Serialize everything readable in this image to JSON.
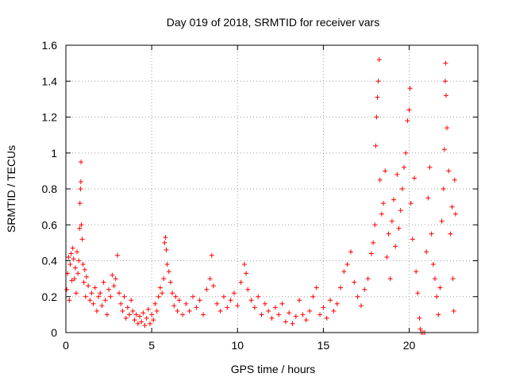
{
  "chart_data": {
    "type": "scatter",
    "title": "Day 019 of 2018, SRMTID for receiver vars",
    "xlabel": "GPS time / hours",
    "ylabel": "SRMTID / TECUs",
    "xlim": [
      0,
      24
    ],
    "ylim": [
      0,
      1.6
    ],
    "xticks": [
      0,
      5,
      10,
      15,
      20
    ],
    "xtick_labels": [
      "0",
      "5",
      "10",
      "15",
      "20"
    ],
    "yticks": [
      0,
      0.2,
      0.4,
      0.6,
      0.8,
      1,
      1.2,
      1.4,
      1.6
    ],
    "ytick_labels": [
      "0",
      "0.2",
      "0.4",
      "0.6",
      "0.8",
      "1",
      "1.2",
      "1.4",
      "1.6"
    ],
    "grid": true,
    "marker": "plus",
    "series": [
      {
        "name": "SRMTID",
        "color": "#ff0000",
        "points": [
          [
            0.05,
            0.24
          ],
          [
            0.1,
            0.33
          ],
          [
            0.15,
            0.42
          ],
          [
            0.2,
            0.18
          ],
          [
            0.25,
            0.38
          ],
          [
            0.3,
            0.44
          ],
          [
            0.35,
            0.29
          ],
          [
            0.4,
            0.47
          ],
          [
            0.45,
            0.41
          ],
          [
            0.5,
            0.3
          ],
          [
            0.55,
            0.36
          ],
          [
            0.6,
            0.22
          ],
          [
            0.65,
            0.45
          ],
          [
            0.7,
            0.33
          ],
          [
            0.75,
            0.4
          ],
          [
            0.8,
            0.58
          ],
          [
            0.82,
            0.72
          ],
          [
            0.85,
            0.8
          ],
          [
            0.87,
            0.84
          ],
          [
            0.88,
            0.95
          ],
          [
            0.9,
            0.6
          ],
          [
            0.95,
            0.52
          ],
          [
            1.0,
            0.38
          ],
          [
            1.05,
            0.28
          ],
          [
            1.1,
            0.35
          ],
          [
            1.15,
            0.2
          ],
          [
            1.2,
            0.31
          ],
          [
            1.3,
            0.26
          ],
          [
            1.4,
            0.18
          ],
          [
            1.5,
            0.22
          ],
          [
            1.6,
            0.16
          ],
          [
            1.7,
            0.25
          ],
          [
            1.8,
            0.12
          ],
          [
            1.9,
            0.2
          ],
          [
            2.0,
            0.22
          ],
          [
            2.1,
            0.15
          ],
          [
            2.2,
            0.28
          ],
          [
            2.3,
            0.18
          ],
          [
            2.4,
            0.1
          ],
          [
            2.5,
            0.24
          ],
          [
            2.6,
            0.2
          ],
          [
            2.7,
            0.32
          ],
          [
            2.8,
            0.26
          ],
          [
            2.9,
            0.3
          ],
          [
            3.0,
            0.43
          ],
          [
            3.1,
            0.22
          ],
          [
            3.2,
            0.16
          ],
          [
            3.3,
            0.12
          ],
          [
            3.4,
            0.2
          ],
          [
            3.5,
            0.08
          ],
          [
            3.6,
            0.14
          ],
          [
            3.7,
            0.1
          ],
          [
            3.8,
            0.18
          ],
          [
            3.9,
            0.12
          ],
          [
            4.0,
            0.07
          ],
          [
            4.1,
            0.1
          ],
          [
            4.2,
            0.05
          ],
          [
            4.3,
            0.09
          ],
          [
            4.4,
            0.06
          ],
          [
            4.5,
            0.11
          ],
          [
            4.6,
            0.04
          ],
          [
            4.7,
            0.08
          ],
          [
            4.8,
            0.13
          ],
          [
            4.9,
            0.05
          ],
          [
            5.0,
            0.1
          ],
          [
            5.1,
            0.07
          ],
          [
            5.2,
            0.16
          ],
          [
            5.3,
            0.12
          ],
          [
            5.4,
            0.2
          ],
          [
            5.5,
            0.25
          ],
          [
            5.6,
            0.22
          ],
          [
            5.7,
            0.3
          ],
          [
            5.75,
            0.5
          ],
          [
            5.8,
            0.53
          ],
          [
            5.85,
            0.46
          ],
          [
            5.9,
            0.38
          ],
          [
            6.0,
            0.34
          ],
          [
            6.1,
            0.28
          ],
          [
            6.2,
            0.22
          ],
          [
            6.3,
            0.15
          ],
          [
            6.4,
            0.2
          ],
          [
            6.5,
            0.12
          ],
          [
            6.6,
            0.18
          ],
          [
            6.8,
            0.1
          ],
          [
            7.0,
            0.16
          ],
          [
            7.2,
            0.12
          ],
          [
            7.4,
            0.2
          ],
          [
            7.6,
            0.14
          ],
          [
            7.8,
            0.18
          ],
          [
            8.0,
            0.1
          ],
          [
            8.2,
            0.24
          ],
          [
            8.4,
            0.3
          ],
          [
            8.5,
            0.43
          ],
          [
            8.6,
            0.26
          ],
          [
            8.8,
            0.16
          ],
          [
            9.0,
            0.12
          ],
          [
            9.2,
            0.2
          ],
          [
            9.4,
            0.14
          ],
          [
            9.6,
            0.18
          ],
          [
            9.8,
            0.22
          ],
          [
            10.0,
            0.15
          ],
          [
            10.2,
            0.28
          ],
          [
            10.4,
            0.38
          ],
          [
            10.5,
            0.33
          ],
          [
            10.6,
            0.24
          ],
          [
            10.8,
            0.18
          ],
          [
            11.0,
            0.14
          ],
          [
            11.2,
            0.2
          ],
          [
            11.4,
            0.1
          ],
          [
            11.6,
            0.16
          ],
          [
            11.8,
            0.12
          ],
          [
            12.0,
            0.08
          ],
          [
            12.2,
            0.14
          ],
          [
            12.4,
            0.1
          ],
          [
            12.6,
            0.16
          ],
          [
            12.8,
            0.06
          ],
          [
            13.0,
            0.11
          ],
          [
            13.2,
            0.05
          ],
          [
            13.4,
            0.09
          ],
          [
            13.6,
            0.18
          ],
          [
            13.8,
            0.1
          ],
          [
            14.0,
            0.07
          ],
          [
            14.2,
            0.12
          ],
          [
            14.4,
            0.2
          ],
          [
            14.6,
            0.25
          ],
          [
            14.8,
            0.1
          ],
          [
            15.0,
            0.14
          ],
          [
            15.2,
            0.08
          ],
          [
            15.4,
            0.18
          ],
          [
            15.6,
            0.12
          ],
          [
            15.8,
            0.16
          ],
          [
            16.0,
            0.25
          ],
          [
            16.2,
            0.34
          ],
          [
            16.4,
            0.38
          ],
          [
            16.6,
            0.45
          ],
          [
            16.8,
            0.28
          ],
          [
            17.0,
            0.2
          ],
          [
            17.2,
            0.15
          ],
          [
            17.4,
            0.24
          ],
          [
            17.6,
            0.3
          ],
          [
            17.8,
            0.44
          ],
          [
            17.9,
            0.5
          ],
          [
            18.0,
            0.6
          ],
          [
            18.05,
            1.04
          ],
          [
            18.1,
            1.2
          ],
          [
            18.15,
            1.31
          ],
          [
            18.2,
            1.4
          ],
          [
            18.25,
            1.52
          ],
          [
            18.3,
            0.85
          ],
          [
            18.4,
            0.66
          ],
          [
            18.5,
            0.72
          ],
          [
            18.6,
            0.9
          ],
          [
            18.7,
            0.42
          ],
          [
            18.8,
            0.55
          ],
          [
            18.9,
            0.3
          ],
          [
            19.0,
            0.62
          ],
          [
            19.1,
            0.74
          ],
          [
            19.2,
            0.48
          ],
          [
            19.3,
            0.88
          ],
          [
            19.4,
            0.58
          ],
          [
            19.5,
            0.68
          ],
          [
            19.6,
            0.8
          ],
          [
            19.7,
            0.92
          ],
          [
            19.8,
            1.0
          ],
          [
            19.9,
            1.18
          ],
          [
            20.0,
            1.24
          ],
          [
            20.05,
            1.36
          ],
          [
            20.1,
            0.72
          ],
          [
            20.2,
            0.52
          ],
          [
            20.3,
            0.86
          ],
          [
            20.4,
            0.34
          ],
          [
            20.5,
            0.22
          ],
          [
            20.6,
            0.08
          ],
          [
            20.65,
            0.02
          ],
          [
            20.7,
            0.0
          ],
          [
            20.8,
            0.0
          ],
          [
            20.9,
            0.0
          ],
          [
            21.0,
            0.45
          ],
          [
            21.1,
            0.75
          ],
          [
            21.2,
            0.92
          ],
          [
            21.3,
            0.55
          ],
          [
            21.4,
            0.38
          ],
          [
            21.5,
            0.3
          ],
          [
            21.6,
            0.2
          ],
          [
            21.7,
            0.1
          ],
          [
            21.8,
            0.25
          ],
          [
            21.9,
            0.62
          ],
          [
            22.0,
            0.8
          ],
          [
            22.05,
            1.02
          ],
          [
            22.1,
            1.4
          ],
          [
            22.12,
            1.5
          ],
          [
            22.15,
            1.32
          ],
          [
            22.2,
            1.14
          ],
          [
            22.3,
            0.9
          ],
          [
            22.4,
            0.55
          ],
          [
            22.5,
            0.7
          ],
          [
            22.55,
            0.3
          ],
          [
            22.6,
            0.12
          ],
          [
            22.65,
            0.85
          ],
          [
            22.7,
            0.66
          ]
        ]
      }
    ]
  }
}
